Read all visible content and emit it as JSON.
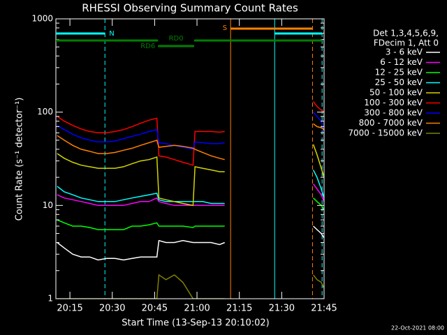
{
  "chart_data": {
    "type": "line",
    "title": "RHESSI Observing Summary Count Rates",
    "xlabel": "Start Time (13-Sep-13 20:10:02)",
    "ylabel": "Count Rate (s⁻¹ detector⁻¹)",
    "legend_header": [
      "Det 1,3,4,5,6,9,",
      "FDecim 1, Att 0"
    ],
    "timestamp": "22-Oct-2021 08:00",
    "log_y": true,
    "xlim": [
      10.03,
      105
    ],
    "ylim": [
      1,
      1000
    ],
    "yticks": [
      1,
      10,
      100,
      1000
    ],
    "xticks": [
      {
        "value": 15,
        "label": "20:15"
      },
      {
        "value": 30,
        "label": "20:30"
      },
      {
        "value": 45,
        "label": "20:45"
      },
      {
        "value": 60,
        "label": "21:00"
      },
      {
        "value": 75,
        "label": "21:15"
      },
      {
        "value": 90,
        "label": "21:30"
      },
      {
        "value": 105,
        "label": "21:45"
      }
    ],
    "x": [
      10.5,
      13,
      16,
      19,
      22,
      25,
      28,
      31,
      34,
      37,
      40,
      43,
      45.8,
      46.5,
      49,
      52,
      55,
      58.6,
      59.3,
      62,
      65,
      68,
      69.8,
      85,
      101.2,
      102.5,
      104,
      105
    ],
    "series": [
      {
        "name": "3 - 6 keV",
        "color": "#ffffff",
        "values": [
          4,
          3.5,
          3,
          2.8,
          2.8,
          2.6,
          2.7,
          2.7,
          2.6,
          2.7,
          2.8,
          2.8,
          2.8,
          4.2,
          4,
          4,
          4.2,
          4,
          4,
          4,
          4,
          3.8,
          4,
          null,
          6,
          5.5,
          5,
          4.5
        ]
      },
      {
        "name": "6 - 12 keV",
        "color": "#ff00ff",
        "values": [
          13,
          12,
          11.5,
          11,
          10.5,
          10,
          10,
          10,
          10,
          10.5,
          11,
          11,
          12,
          11,
          10.5,
          10,
          10,
          10,
          10,
          10,
          10,
          10,
          10,
          null,
          17,
          15,
          13,
          11
        ]
      },
      {
        "name": "12 - 25 keV",
        "color": "#00ff00",
        "values": [
          7,
          6.5,
          6,
          6,
          5.8,
          5.5,
          5.5,
          5.5,
          5.5,
          6,
          6,
          6.2,
          6.5,
          6,
          6,
          6,
          6,
          5.8,
          6,
          6,
          6,
          6,
          6,
          null,
          12,
          11,
          10,
          9
        ]
      },
      {
        "name": "25 - 50 keV",
        "color": "#00ffff",
        "values": [
          16,
          14,
          13,
          12,
          11.5,
          11,
          11,
          11,
          11.5,
          12,
          12.5,
          13,
          13.5,
          11.5,
          11,
          11,
          11,
          11,
          11,
          11,
          10.5,
          10.5,
          10.5,
          null,
          24,
          20,
          15,
          12
        ]
      },
      {
        "name": "50 - 100 keV",
        "color": "#d4d400",
        "values": [
          36,
          32,
          29,
          27,
          26,
          25,
          25,
          25,
          26,
          28,
          30,
          31,
          33,
          12,
          11.5,
          11,
          10.5,
          10,
          26,
          25,
          24,
          23,
          23,
          null,
          45,
          35,
          25,
          20
        ]
      },
      {
        "name": "100 - 300 keV",
        "color": "#ff0000",
        "values": [
          90,
          80,
          72,
          66,
          62,
          60,
          60,
          62,
          65,
          70,
          76,
          82,
          86,
          34,
          33,
          31,
          29,
          27,
          62,
          62,
          62,
          61,
          62,
          null,
          130,
          115,
          105,
          100
        ]
      },
      {
        "name": "300 - 800 keV",
        "color": "#0000ff",
        "values": [
          72,
          65,
          58,
          53,
          50,
          48,
          48,
          49,
          52,
          55,
          58,
          62,
          65,
          47,
          46,
          44,
          42,
          40,
          48,
          47,
          46,
          46,
          47,
          null,
          100,
          90,
          80,
          60
        ]
      },
      {
        "name": "800 - 7000 keV",
        "color": "#ff8000",
        "values": [
          56,
          50,
          44,
          40,
          38,
          36,
          36,
          37,
          39,
          41,
          44,
          47,
          50,
          42,
          43,
          44,
          43,
          41,
          40,
          37,
          34,
          32,
          31,
          null,
          75,
          70,
          68,
          65
        ]
      },
      {
        "name": "7000 - 15000 keV",
        "color": "#808000",
        "values": [
          1,
          1,
          1,
          1,
          1,
          1,
          1,
          1,
          1,
          1,
          1,
          1,
          1,
          1.8,
          1.6,
          1.8,
          1.5,
          1,
          1,
          1,
          1,
          1,
          1,
          null,
          1.8,
          1.6,
          1.5,
          1.3
        ]
      }
    ],
    "flag_bars": [
      {
        "label": "N",
        "color": "#00ffff",
        "segments": [
          [
            10.03,
            27.4
          ],
          [
            87.5,
            104.3
          ]
        ]
      },
      {
        "label": "S",
        "color": "#ff8000",
        "segments": [
          [
            71.9,
            100.9
          ]
        ]
      },
      {
        "label": "RD0",
        "color": "#008000",
        "segments": [
          [
            10.03,
            46.2
          ],
          [
            59,
            104.3
          ]
        ]
      },
      {
        "label": "RD6",
        "color": "#008000",
        "segments": [
          [
            46.2,
            59
          ]
        ]
      }
    ],
    "event_lines": [
      {
        "x": 27.4,
        "color": "#00ffff",
        "dashed": true
      },
      {
        "x": 71.9,
        "color": "#ff8000",
        "dashed": false
      },
      {
        "x": 87.5,
        "color": "#00ffff",
        "dashed": false
      },
      {
        "x": 100.9,
        "color": "#ff8000",
        "dashed": true
      },
      {
        "x": 104.3,
        "color": "#00ffff",
        "dashed": true
      }
    ]
  }
}
